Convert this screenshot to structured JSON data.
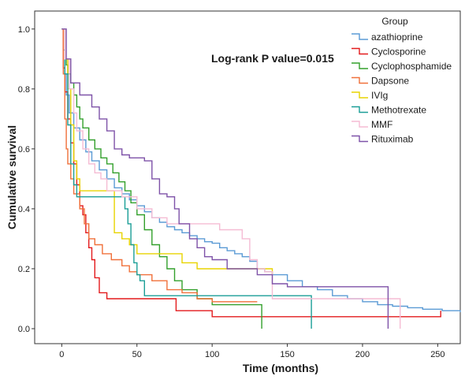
{
  "chart_data": {
    "type": "line",
    "subtype": "kaplan-meier step",
    "xlabel": "Time (months)",
    "ylabel": "Cumulative survival",
    "xlim": [
      -18,
      265
    ],
    "ylim": [
      -0.05,
      1.06
    ],
    "xticks": [
      0,
      50,
      100,
      150,
      200,
      250
    ],
    "yticks": [
      0.0,
      0.2,
      0.4,
      0.6,
      0.8,
      1.0
    ],
    "ytick_labels": [
      "0.0",
      "0.2",
      "0.4",
      "0.6",
      "0.8",
      "1.0"
    ],
    "grid": false,
    "annotation": "Log-rank P value=0.015",
    "legend": {
      "title": "Group",
      "placement": "top-right"
    },
    "series": [
      {
        "name": "azathioprine",
        "color": "#5b9bd5",
        "points": [
          [
            0,
            1.0
          ],
          [
            1,
            0.93
          ],
          [
            2,
            0.85
          ],
          [
            3,
            0.78
          ],
          [
            5,
            0.72
          ],
          [
            8,
            0.67
          ],
          [
            12,
            0.63
          ],
          [
            16,
            0.59
          ],
          [
            20,
            0.56
          ],
          [
            25,
            0.53
          ],
          [
            30,
            0.5
          ],
          [
            35,
            0.47
          ],
          [
            40,
            0.45
          ],
          [
            45,
            0.43
          ],
          [
            50,
            0.41
          ],
          [
            55,
            0.39
          ],
          [
            60,
            0.37
          ],
          [
            65,
            0.355
          ],
          [
            70,
            0.34
          ],
          [
            75,
            0.33
          ],
          [
            80,
            0.32
          ],
          [
            85,
            0.31
          ],
          [
            90,
            0.3
          ],
          [
            95,
            0.29
          ],
          [
            100,
            0.285
          ],
          [
            105,
            0.27
          ],
          [
            110,
            0.26
          ],
          [
            115,
            0.25
          ],
          [
            120,
            0.24
          ],
          [
            125,
            0.225
          ],
          [
            130,
            0.2
          ],
          [
            135,
            0.19
          ],
          [
            140,
            0.18
          ],
          [
            150,
            0.16
          ],
          [
            160,
            0.14
          ],
          [
            170,
            0.13
          ],
          [
            180,
            0.11
          ],
          [
            190,
            0.1
          ],
          [
            200,
            0.09
          ],
          [
            210,
            0.08
          ],
          [
            220,
            0.075
          ],
          [
            230,
            0.07
          ],
          [
            240,
            0.065
          ],
          [
            253,
            0.06
          ],
          [
            265,
            0.055
          ]
        ]
      },
      {
        "name": "Cyclosporine",
        "color": "#e31a1c",
        "points": [
          [
            0,
            1.0
          ],
          [
            1,
            0.87
          ],
          [
            2,
            0.79
          ],
          [
            4,
            0.7
          ],
          [
            6,
            0.62
          ],
          [
            8,
            0.55
          ],
          [
            10,
            0.48
          ],
          [
            12,
            0.41
          ],
          [
            14,
            0.38
          ],
          [
            16,
            0.32
          ],
          [
            18,
            0.27
          ],
          [
            20,
            0.23
          ],
          [
            22,
            0.17
          ],
          [
            25,
            0.12
          ],
          [
            30,
            0.1
          ],
          [
            60,
            0.1
          ],
          [
            76,
            0.06
          ],
          [
            100,
            0.04
          ],
          [
            240,
            0.04
          ],
          [
            252,
            0.06
          ]
        ]
      },
      {
        "name": "Cyclophosphamide",
        "color": "#33a02c",
        "points": [
          [
            0,
            1.0
          ],
          [
            2,
            0.9
          ],
          [
            3,
            0.88
          ],
          [
            4,
            0.85
          ],
          [
            6,
            0.82
          ],
          [
            8,
            0.78
          ],
          [
            10,
            0.74
          ],
          [
            12,
            0.7
          ],
          [
            14,
            0.67
          ],
          [
            18,
            0.63
          ],
          [
            22,
            0.6
          ],
          [
            26,
            0.57
          ],
          [
            30,
            0.55
          ],
          [
            34,
            0.52
          ],
          [
            38,
            0.49
          ],
          [
            42,
            0.46
          ],
          [
            46,
            0.42
          ],
          [
            50,
            0.38
          ],
          [
            55,
            0.33
          ],
          [
            60,
            0.28
          ],
          [
            65,
            0.24
          ],
          [
            70,
            0.2
          ],
          [
            75,
            0.16
          ],
          [
            80,
            0.13
          ],
          [
            90,
            0.1
          ],
          [
            100,
            0.08
          ],
          [
            133,
            0.08
          ],
          [
            133,
            0.0
          ]
        ]
      },
      {
        "name": "Dapsone",
        "color": "#f0703a",
        "points": [
          [
            0,
            1.0
          ],
          [
            1,
            0.85
          ],
          [
            2,
            0.7
          ],
          [
            3,
            0.6
          ],
          [
            4,
            0.55
          ],
          [
            6,
            0.5
          ],
          [
            8,
            0.45
          ],
          [
            12,
            0.4
          ],
          [
            15,
            0.35
          ],
          [
            18,
            0.3
          ],
          [
            22,
            0.28
          ],
          [
            27,
            0.25
          ],
          [
            33,
            0.23
          ],
          [
            40,
            0.21
          ],
          [
            45,
            0.19
          ],
          [
            50,
            0.18
          ],
          [
            60,
            0.16
          ],
          [
            70,
            0.13
          ],
          [
            80,
            0.12
          ],
          [
            90,
            0.1
          ],
          [
            100,
            0.09
          ],
          [
            130,
            0.09
          ]
        ]
      },
      {
        "name": "IVIg",
        "color": "#e8d400",
        "points": [
          [
            0,
            1.0
          ],
          [
            2,
            0.9
          ],
          [
            4,
            0.8
          ],
          [
            6,
            0.68
          ],
          [
            8,
            0.56
          ],
          [
            10,
            0.5
          ],
          [
            12,
            0.46
          ],
          [
            30,
            0.46
          ],
          [
            35,
            0.32
          ],
          [
            40,
            0.3
          ],
          [
            45,
            0.28
          ],
          [
            50,
            0.25
          ],
          [
            70,
            0.25
          ],
          [
            80,
            0.22
          ],
          [
            90,
            0.2
          ],
          [
            140,
            0.2
          ],
          [
            140,
            0.18
          ]
        ]
      },
      {
        "name": "Methotrexate",
        "color": "#1b9e97",
        "points": [
          [
            0,
            1.0
          ],
          [
            2,
            0.85
          ],
          [
            4,
            0.68
          ],
          [
            6,
            0.55
          ],
          [
            8,
            0.48
          ],
          [
            10,
            0.44
          ],
          [
            40,
            0.44
          ],
          [
            42,
            0.4
          ],
          [
            44,
            0.35
          ],
          [
            46,
            0.28
          ],
          [
            48,
            0.22
          ],
          [
            50,
            0.18
          ],
          [
            52,
            0.16
          ],
          [
            55,
            0.11
          ],
          [
            150,
            0.11
          ],
          [
            166,
            0.11
          ],
          [
            166,
            0.0
          ]
        ]
      },
      {
        "name": "MMF",
        "color": "#f5bcd4",
        "points": [
          [
            0,
            1.0
          ],
          [
            2,
            0.9
          ],
          [
            5,
            0.8
          ],
          [
            8,
            0.72
          ],
          [
            10,
            0.66
          ],
          [
            14,
            0.6
          ],
          [
            18,
            0.55
          ],
          [
            22,
            0.52
          ],
          [
            26,
            0.5
          ],
          [
            30,
            0.46
          ],
          [
            40,
            0.44
          ],
          [
            50,
            0.4
          ],
          [
            60,
            0.37
          ],
          [
            70,
            0.35
          ],
          [
            100,
            0.35
          ],
          [
            105,
            0.33
          ],
          [
            120,
            0.3
          ],
          [
            125,
            0.23
          ],
          [
            130,
            0.2
          ],
          [
            135,
            0.19
          ],
          [
            140,
            0.1
          ],
          [
            200,
            0.1
          ],
          [
            225,
            0.1
          ],
          [
            225,
            0.0
          ]
        ]
      },
      {
        "name": "Rituximab",
        "color": "#7e52a8",
        "points": [
          [
            0,
            1.0
          ],
          [
            3,
            0.9
          ],
          [
            6,
            0.82
          ],
          [
            12,
            0.78
          ],
          [
            20,
            0.74
          ],
          [
            25,
            0.7
          ],
          [
            30,
            0.66
          ],
          [
            35,
            0.6
          ],
          [
            40,
            0.58
          ],
          [
            45,
            0.57
          ],
          [
            50,
            0.57
          ],
          [
            55,
            0.56
          ],
          [
            60,
            0.5
          ],
          [
            65,
            0.45
          ],
          [
            70,
            0.44
          ],
          [
            75,
            0.4
          ],
          [
            78,
            0.35
          ],
          [
            85,
            0.3
          ],
          [
            90,
            0.27
          ],
          [
            95,
            0.24
          ],
          [
            100,
            0.23
          ],
          [
            110,
            0.2
          ],
          [
            125,
            0.2
          ],
          [
            130,
            0.18
          ],
          [
            140,
            0.15
          ],
          [
            150,
            0.14
          ],
          [
            217,
            0.14
          ],
          [
            217,
            0.0
          ]
        ]
      }
    ]
  }
}
